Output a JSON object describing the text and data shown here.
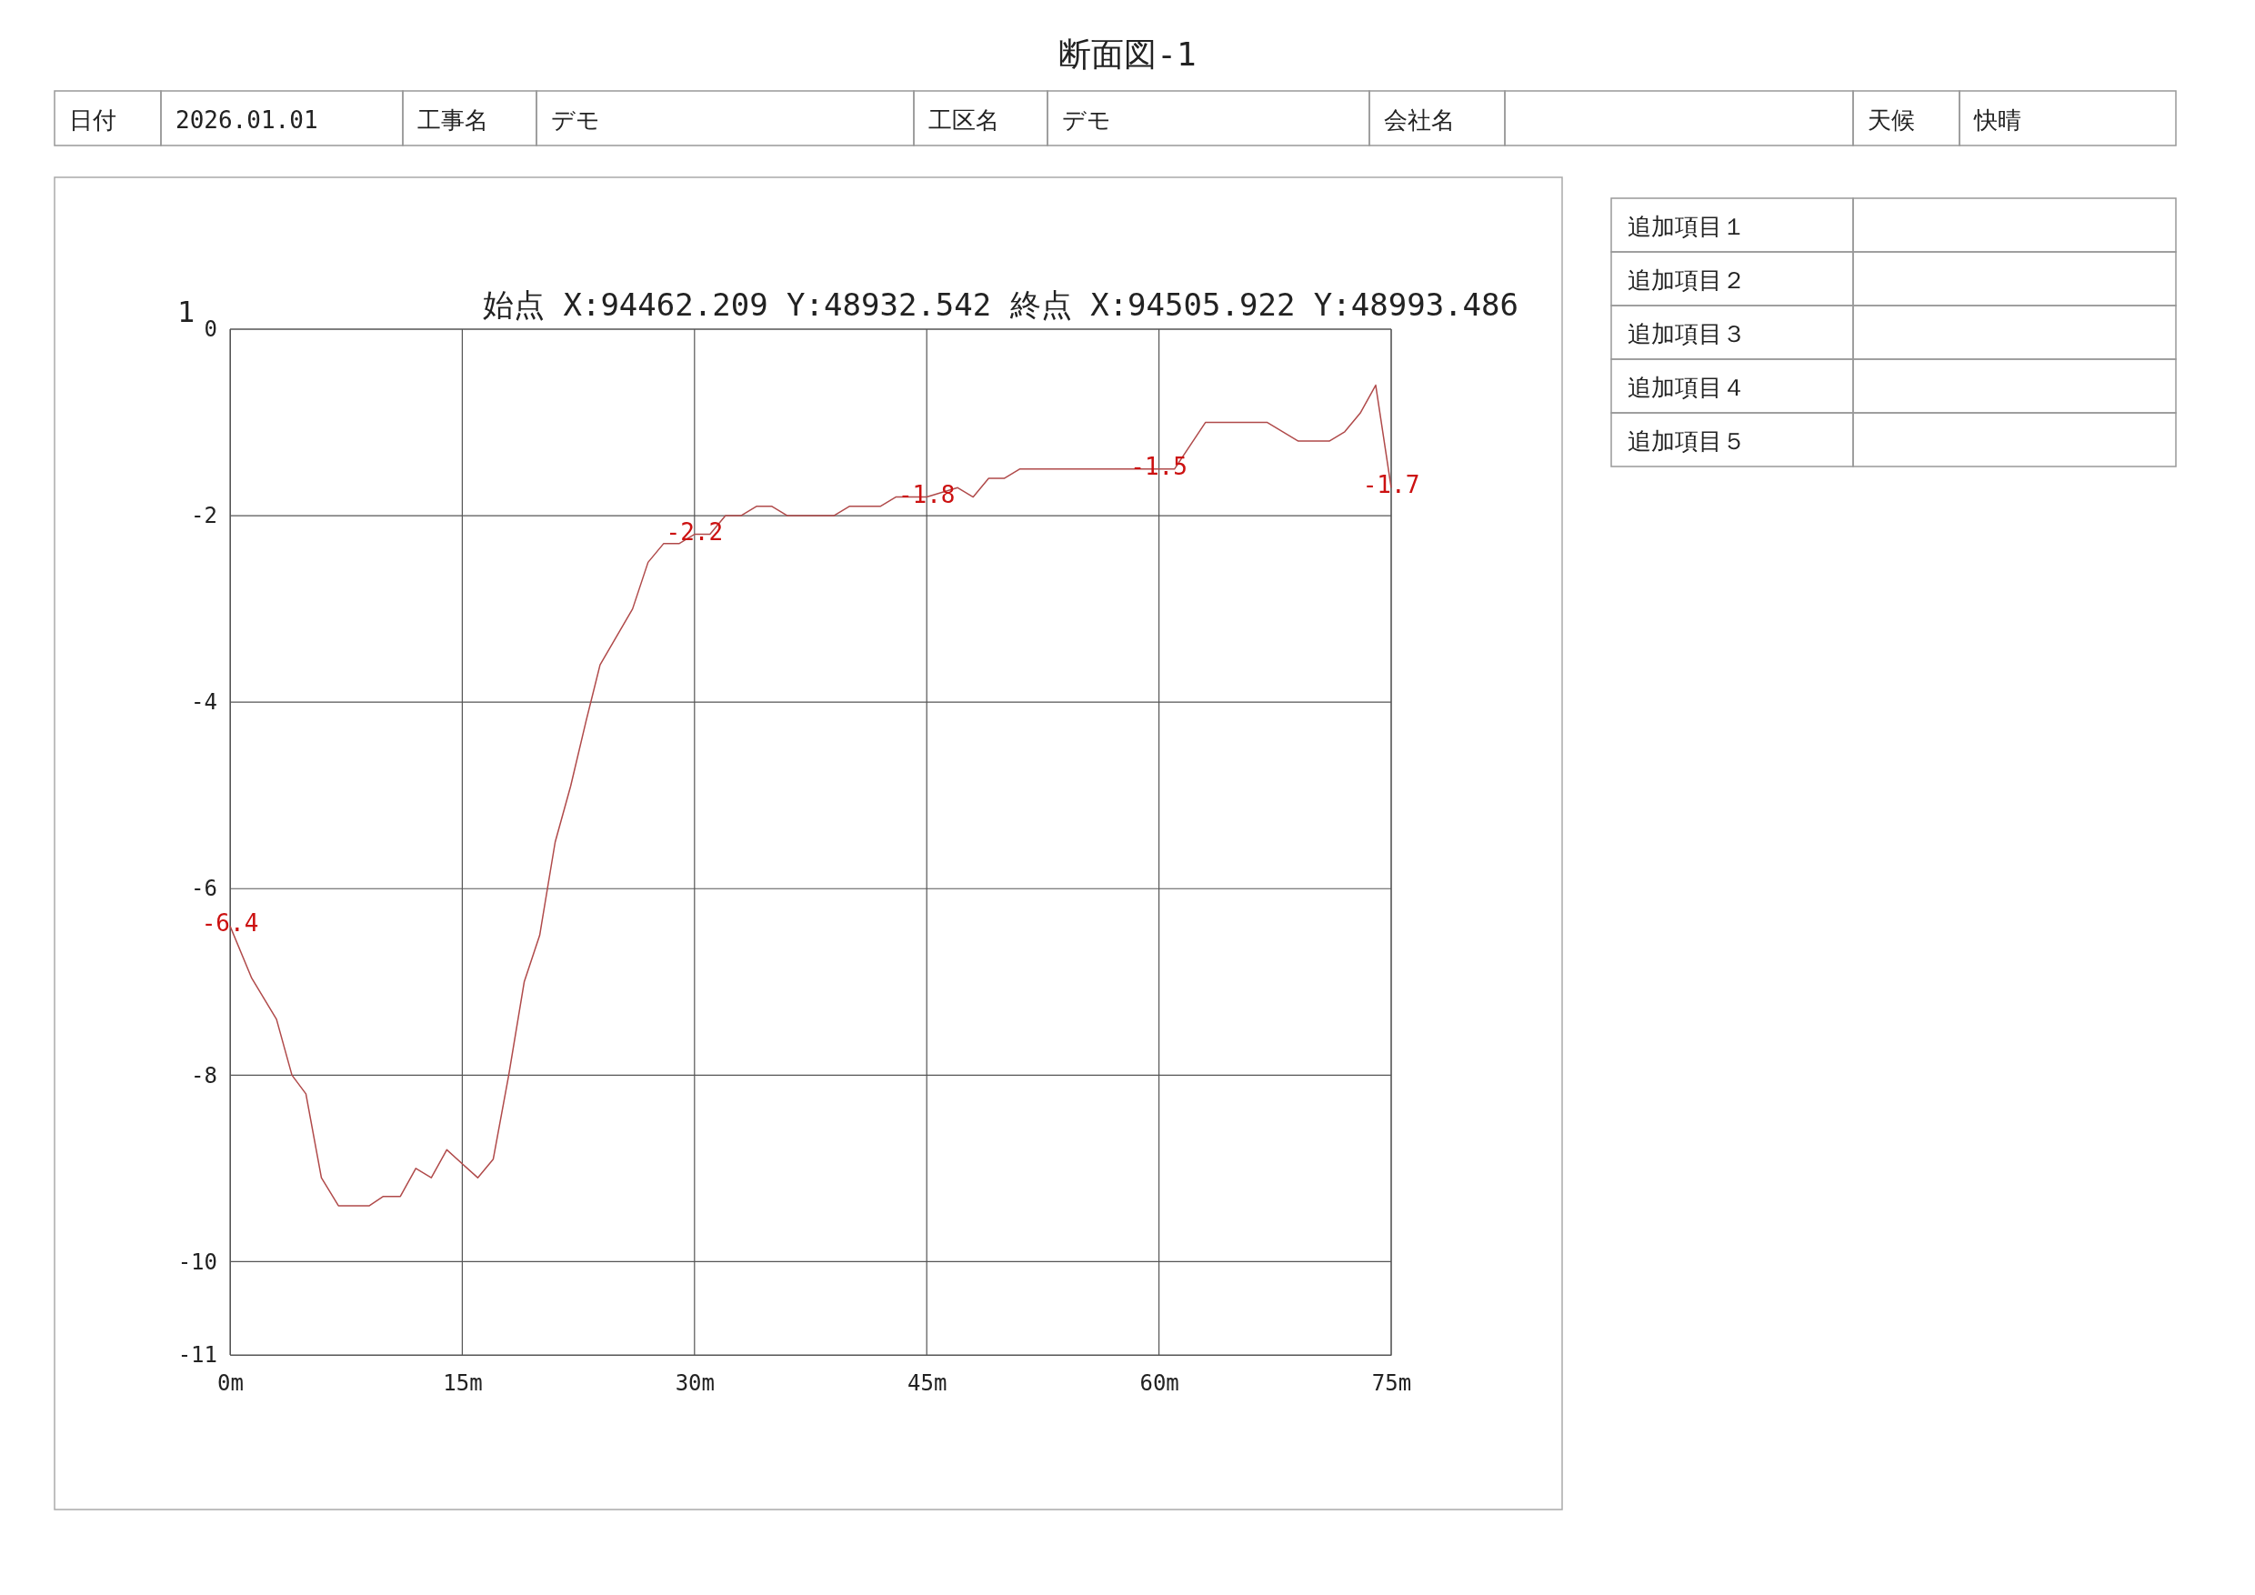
{
  "chart_data": {
    "type": "line",
    "title": "断面図-1",
    "subtitle": "始点 X:94462.209 Y:48932.542 終点 X:94505.922 Y:48993.486",
    "annotations": [
      "日付",
      "2026.01.01",
      "工事名",
      "デモ",
      "工区名",
      "デモ",
      "会社名",
      "天候",
      "快晴",
      "追加項目１",
      "追加項目２",
      "追加項目３",
      "追加項目４",
      "追加項目５",
      "1",
      {
        "text": "-6.4",
        "x": 0,
        "y": -6.4
      },
      {
        "text": "-2.2",
        "x": 30,
        "y": -2.2
      },
      {
        "text": "-1.8",
        "x": 45,
        "y": -1.8
      },
      {
        "text": "-1.5",
        "x": 60,
        "y": -1.5
      },
      {
        "text": "-1.7",
        "x": 75,
        "y": -1.7
      }
    ],
    "xlim": [
      0,
      75
    ],
    "ylim": [
      -11,
      0
    ],
    "xticks": [
      {
        "value": 0,
        "label": "0m"
      },
      {
        "value": 15,
        "label": "15m"
      },
      {
        "value": 30,
        "label": "30m"
      },
      {
        "value": 45,
        "label": "45m"
      },
      {
        "value": 60,
        "label": "60m"
      },
      {
        "value": 75,
        "label": "75m"
      }
    ],
    "yticks": [
      0,
      -2,
      -4,
      -6,
      -8,
      -10,
      -11
    ],
    "grid": true,
    "line_style": "solid",
    "series": [
      {
        "color": "#b04a4a",
        "x": [
          0,
          1.4,
          3,
          4,
          4.9,
          5.9,
          7,
          9,
          9.9,
          11,
          12,
          13,
          14,
          16,
          17,
          18,
          19,
          20,
          21,
          22,
          23,
          23.9,
          26,
          27,
          28,
          29,
          30,
          31,
          32,
          33,
          34,
          35,
          36,
          39,
          40,
          42,
          43,
          45,
          47,
          48,
          49,
          50,
          51,
          61,
          63,
          67,
          69,
          71,
          72,
          73,
          74,
          75
        ],
        "values": [
          -6.4,
          -6.96,
          -7.4,
          -8.0,
          -8.2,
          -9.1,
          -9.4,
          -9.4,
          -9.3,
          -9.3,
          -9.0,
          -9.1,
          -8.8,
          -9.1,
          -8.9,
          -8.0,
          -7.0,
          -6.5,
          -5.5,
          -4.9,
          -4.2,
          -3.6,
          -3.0,
          -2.5,
          -2.3,
          -2.3,
          -2.2,
          -2.2,
          -2.0,
          -2.0,
          -1.9,
          -1.9,
          -2.0,
          -2.0,
          -1.9,
          -1.9,
          -1.8,
          -1.8,
          -1.7,
          -1.8,
          -1.6,
          -1.6,
          -1.5,
          -1.5,
          -1.0,
          -1.0,
          -1.2,
          -1.2,
          -1.1,
          -0.9,
          -0.6,
          -1.7
        ]
      }
    ]
  }
}
